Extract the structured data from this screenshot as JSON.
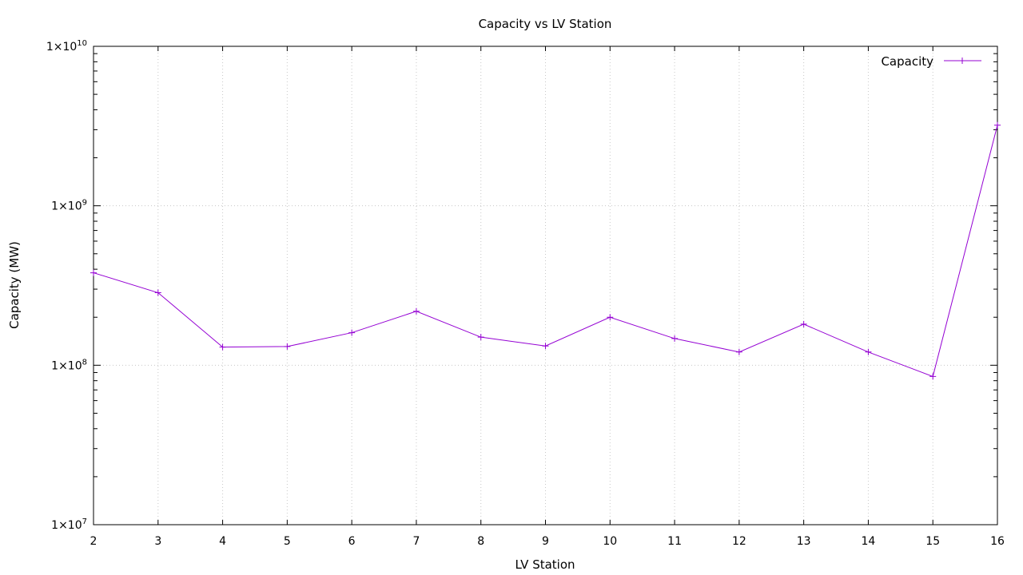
{
  "chart_data": {
    "type": "line",
    "title": "Capacity vs LV Station",
    "xlabel": "LV Station",
    "ylabel": "Capacity (MW)",
    "x": [
      2,
      3,
      4,
      5,
      6,
      7,
      8,
      9,
      10,
      11,
      12,
      13,
      14,
      15,
      16
    ],
    "series": [
      {
        "name": "Capacity",
        "color": "#9400d3",
        "marker": "plus",
        "values": [
          380000000,
          285000000,
          130000000,
          131000000,
          160000000,
          218000000,
          150000000,
          132000000,
          200000000,
          147000000,
          121000000,
          181000000,
          121000000,
          85000000,
          3200000000
        ]
      }
    ],
    "xlim": [
      2,
      16
    ],
    "ylim": [
      10000000,
      10000000000
    ],
    "yscale": "log",
    "xticks": [
      2,
      3,
      4,
      5,
      6,
      7,
      8,
      9,
      10,
      11,
      12,
      13,
      14,
      15,
      16
    ],
    "yticks": [
      {
        "value": 10000000,
        "base": "1×10",
        "exp": "7"
      },
      {
        "value": 100000000,
        "base": "1×10",
        "exp": "8"
      },
      {
        "value": 1000000000,
        "base": "1×10",
        "exp": "9"
      },
      {
        "value": 10000000000,
        "base": "1×10",
        "exp": "10"
      }
    ],
    "grid": true,
    "legend": "top-right"
  }
}
